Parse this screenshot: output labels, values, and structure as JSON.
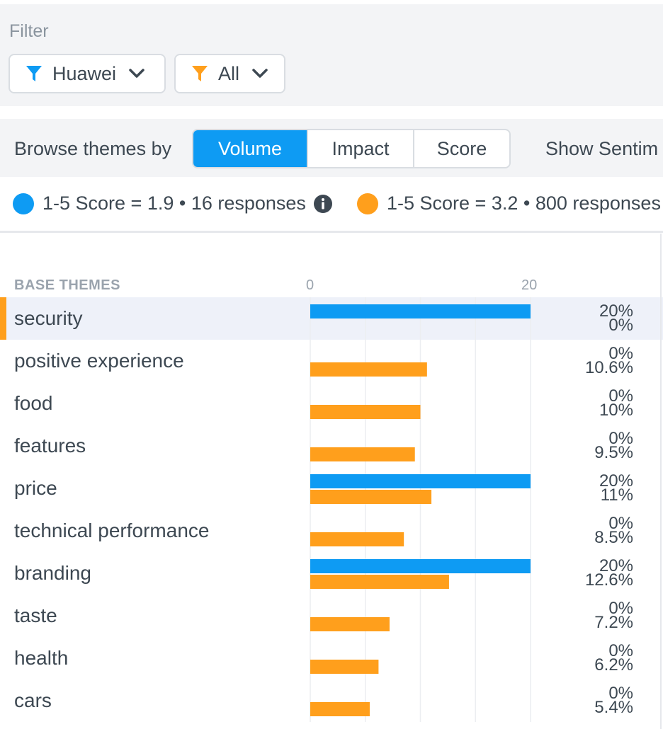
{
  "filter": {
    "label": "Filter",
    "buttons": [
      {
        "label": "Huawei",
        "color": "#0e9bf3",
        "icon": "filter-icon"
      },
      {
        "label": "All",
        "color": "#ff9f1c",
        "icon": "filter-icon"
      }
    ]
  },
  "toolbar": {
    "browse_label": "Browse themes by",
    "segments": [
      {
        "label": "Volume",
        "active": true
      },
      {
        "label": "Impact",
        "active": false
      },
      {
        "label": "Score",
        "active": false
      }
    ],
    "show_sentiment": "Show Sentim"
  },
  "legend": [
    {
      "text": "1-5 Score = 1.9 • 16 responses",
      "color": "#0e9bf3",
      "icon": "info-icon"
    },
    {
      "text": "1-5 Score = 3.2 • 800 responses",
      "color": "#ff9f1c"
    }
  ],
  "chart_data": {
    "type": "bar",
    "orientation": "horizontal",
    "column_header": "BASE THEMES",
    "x_ticks": [
      "0",
      "20"
    ],
    "xlim": [
      0,
      20
    ],
    "grid": true,
    "series": [
      {
        "name": "1-5 Score = 1.9 • 16 responses",
        "color": "#0e9bf3",
        "values": [
          20,
          0,
          0,
          0,
          20,
          0,
          20,
          0,
          0,
          0
        ]
      },
      {
        "name": "1-5 Score = 3.2 • 800 responses",
        "color": "#ff9f1c",
        "values": [
          0,
          10.6,
          10,
          9.5,
          11,
          8.5,
          12.6,
          7.2,
          6.2,
          5.4
        ]
      }
    ],
    "categories": [
      "security",
      "positive experience",
      "food",
      "features",
      "price",
      "technical performance",
      "branding",
      "taste",
      "health",
      "cars"
    ],
    "value_labels": [
      [
        "20%",
        "0%"
      ],
      [
        "0%",
        "10.6%"
      ],
      [
        "0%",
        "10%"
      ],
      [
        "0%",
        "9.5%"
      ],
      [
        "20%",
        "11%"
      ],
      [
        "0%",
        "8.5%"
      ],
      [
        "20%",
        "12.6%"
      ],
      [
        "0%",
        "7.2%"
      ],
      [
        "0%",
        "6.2%"
      ],
      [
        "0%",
        "5.4%"
      ]
    ],
    "selected_category": "security"
  }
}
